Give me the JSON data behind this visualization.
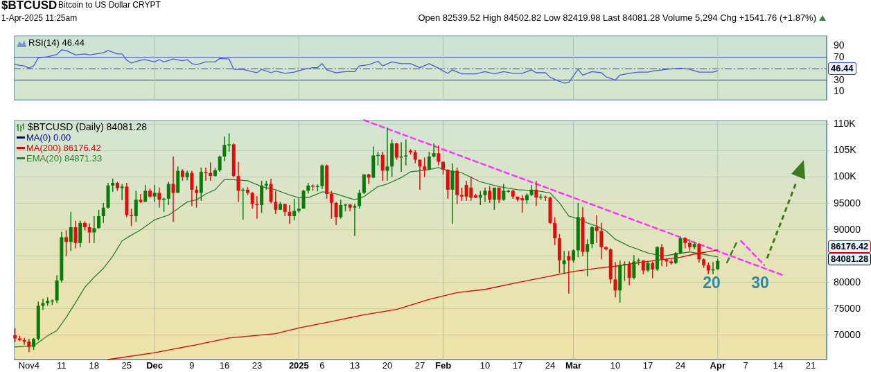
{
  "chart_data": [
    {
      "type": "line",
      "title": "$BTCUSD",
      "subtitle": "Bitcoin to US Dollar  CRYPT",
      "annotations": [
        "1-Apr-2025 11:25am",
        "Open 82539.52  High 84502.82  Low 82419.98  Last 84081.28  Volume 5,294  Chg +1541.76 (+1.87%)",
        "46.44"
      ],
      "series": [
        {
          "name": "RSI(14) 46.44",
          "color": "#4a5ad0",
          "x": [
            "2024-11-01",
            "2024-11-03",
            "2024-11-04",
            "2024-11-05",
            "2024-11-06",
            "2024-11-08",
            "2024-11-10",
            "2024-11-11",
            "2024-11-12",
            "2024-11-14",
            "2024-11-16",
            "2024-11-17",
            "2024-11-20",
            "2024-11-21",
            "2024-11-23",
            "2024-11-24",
            "2024-11-25",
            "2024-11-26",
            "2024-11-28",
            "2024-11-29",
            "2024-12-01",
            "2024-12-02",
            "2024-12-03",
            "2024-12-05",
            "2024-12-07",
            "2024-12-08",
            "2024-12-09",
            "2024-12-10",
            "2024-12-12",
            "2024-12-14",
            "2024-12-15",
            "2024-12-17",
            "2024-12-18",
            "2024-12-20",
            "2024-12-23",
            "2024-12-24",
            "2024-12-26",
            "2024-12-27",
            "2024-12-29",
            "2024-12-31",
            "2025-01-02",
            "2025-01-04",
            "2025-01-05",
            "2025-01-06",
            "2025-01-07",
            "2025-01-09",
            "2025-01-11",
            "2025-01-13",
            "2025-01-14",
            "2025-01-16",
            "2025-01-18",
            "2025-01-19",
            "2025-01-21",
            "2025-01-23",
            "2025-01-25",
            "2025-01-27",
            "2025-01-29",
            "2025-01-31",
            "2025-02-01",
            "2025-02-02",
            "2025-02-03",
            "2025-02-05",
            "2025-02-08",
            "2025-02-10",
            "2025-02-12",
            "2025-02-14",
            "2025-02-16",
            "2025-02-18",
            "2025-02-20",
            "2025-02-21",
            "2025-02-23",
            "2025-02-24",
            "2025-02-26",
            "2025-02-27",
            "2025-02-28",
            "2025-03-02",
            "2025-03-03",
            "2025-03-05",
            "2025-03-07",
            "2025-03-08",
            "2025-03-10",
            "2025-03-11",
            "2025-03-13",
            "2025-03-15",
            "2025-03-17",
            "2025-03-18",
            "2025-03-21",
            "2025-03-24",
            "2025-03-26",
            "2025-03-28",
            "2025-03-31",
            "2025-04-01"
          ],
          "values": [
            57,
            55,
            51,
            55,
            69,
            71,
            75,
            83,
            82,
            74,
            76,
            74,
            78,
            82,
            76,
            76,
            65,
            60,
            65,
            66,
            62,
            66,
            62,
            67,
            64,
            66,
            59,
            57,
            62,
            62,
            68,
            67,
            49,
            49,
            43,
            49,
            43,
            46,
            42,
            44,
            49,
            52,
            52,
            59,
            48,
            43,
            45,
            45,
            55,
            57,
            63,
            55,
            62,
            59,
            59,
            52,
            59,
            51,
            46,
            42,
            48,
            41,
            41,
            45,
            41,
            45,
            42,
            42,
            48,
            43,
            43,
            35,
            28,
            25,
            26,
            49,
            39,
            45,
            43,
            36,
            30,
            39,
            42,
            44,
            44,
            46,
            49,
            51,
            49,
            44,
            44,
            46.44
          ]
        }
      ],
      "xlim": [
        "2024-10-31T18:00",
        "2025-04-24T10:00"
      ],
      "ylim": [
        -5,
        108
      ],
      "yticks": [
        10,
        30,
        {
          "value": 50,
          "label": null
        },
        70,
        90
      ],
      "ref_lines": [
        {
          "axis": "y",
          "value": 70,
          "color": "#3040c8"
        },
        {
          "axis": "y",
          "value": 30,
          "color": "#3040c8"
        },
        {
          "axis": "y",
          "value": 50,
          "color": "#3040c8",
          "line_style": "dashed"
        },
        {
          "axis": "x",
          "value": "2024-12-01",
          "color": "#b4c4b8"
        },
        {
          "axis": "x",
          "value": "2025-01-01",
          "color": "#b4c4b8"
        },
        {
          "axis": "x",
          "value": "2025-02-01",
          "color": "#b4c4b8"
        },
        {
          "axis": "x",
          "value": "2025-03-01",
          "color": "#b4c4b8"
        },
        {
          "axis": "x",
          "value": "2025-04-01",
          "color": "#b4c4b8"
        }
      ],
      "legend": "top left",
      "tick_labels": "y"
    },
    {
      "type": "candlestick",
      "legend_title": "$BTCUSD (Daily) 84081.28",
      "x": [
        "2024-11-01",
        "2024-11-02",
        "2024-11-03",
        "2024-11-04",
        "2024-11-05",
        "2024-11-06",
        "2024-11-07",
        "2024-11-08",
        "2024-11-09",
        "2024-11-10",
        "2024-11-11",
        "2024-11-12",
        "2024-11-13",
        "2024-11-14",
        "2024-11-15",
        "2024-11-16",
        "2024-11-17",
        "2024-11-18",
        "2024-11-19",
        "2024-11-20",
        "2024-11-21",
        "2024-11-22",
        "2024-11-23",
        "2024-11-24",
        "2024-11-25",
        "2024-11-26",
        "2024-11-27",
        "2024-11-28",
        "2024-11-29",
        "2024-11-30",
        "2024-12-01",
        "2024-12-02",
        "2024-12-03",
        "2024-12-04",
        "2024-12-05",
        "2024-12-06",
        "2024-12-07",
        "2024-12-08",
        "2024-12-09",
        "2024-12-10",
        "2024-12-11",
        "2024-12-12",
        "2024-12-13",
        "2024-12-14",
        "2024-12-15",
        "2024-12-16",
        "2024-12-17",
        "2024-12-18",
        "2024-12-19",
        "2024-12-20",
        "2024-12-21",
        "2024-12-22",
        "2024-12-23",
        "2024-12-24",
        "2024-12-25",
        "2024-12-26",
        "2024-12-27",
        "2024-12-28",
        "2024-12-29",
        "2024-12-30",
        "2024-12-31",
        "2025-01-01",
        "2025-01-02",
        "2025-01-03",
        "2025-01-04",
        "2025-01-05",
        "2025-01-06",
        "2025-01-07",
        "2025-01-08",
        "2025-01-09",
        "2025-01-10",
        "2025-01-11",
        "2025-01-12",
        "2025-01-13",
        "2025-01-14",
        "2025-01-15",
        "2025-01-16",
        "2025-01-17",
        "2025-01-18",
        "2025-01-19",
        "2025-01-20",
        "2025-01-21",
        "2025-01-22",
        "2025-01-23",
        "2025-01-24",
        "2025-01-25",
        "2025-01-26",
        "2025-01-27",
        "2025-01-28",
        "2025-01-29",
        "2025-01-30",
        "2025-01-31",
        "2025-02-01",
        "2025-02-02",
        "2025-02-03",
        "2025-02-04",
        "2025-02-05",
        "2025-02-06",
        "2025-02-07",
        "2025-02-08",
        "2025-02-09",
        "2025-02-10",
        "2025-02-11",
        "2025-02-12",
        "2025-02-13",
        "2025-02-14",
        "2025-02-15",
        "2025-02-16",
        "2025-02-17",
        "2025-02-18",
        "2025-02-19",
        "2025-02-20",
        "2025-02-21",
        "2025-02-22",
        "2025-02-23",
        "2025-02-24",
        "2025-02-25",
        "2025-02-26",
        "2025-02-27",
        "2025-02-28",
        "2025-03-01",
        "2025-03-02",
        "2025-03-03",
        "2025-03-04",
        "2025-03-05",
        "2025-03-06",
        "2025-03-07",
        "2025-03-08",
        "2025-03-09",
        "2025-03-10",
        "2025-03-11",
        "2025-03-12",
        "2025-03-13",
        "2025-03-14",
        "2025-03-15",
        "2025-03-16",
        "2025-03-17",
        "2025-03-18",
        "2025-03-19",
        "2025-03-20",
        "2025-03-21",
        "2025-03-22",
        "2025-03-23",
        "2025-03-24",
        "2025-03-25",
        "2025-03-26",
        "2025-03-27",
        "2025-03-28",
        "2025-03-29",
        "2025-03-30",
        "2025-03-31",
        "2025-04-01"
      ],
      "ohlc": [
        [
          70000,
          71300,
          68700,
          69400
        ],
        [
          69400,
          69900,
          68900,
          69100
        ],
        [
          69100,
          69500,
          68200,
          68800
        ],
        [
          68800,
          69300,
          66800,
          67800
        ],
        [
          67800,
          69500,
          67200,
          69300
        ],
        [
          69300,
          76400,
          69000,
          75600
        ],
        [
          75600,
          76900,
          74800,
          76100
        ],
        [
          76100,
          77200,
          75600,
          76500
        ],
        [
          76500,
          76800,
          75700,
          76600
        ],
        [
          76600,
          81400,
          76100,
          80400
        ],
        [
          80400,
          89600,
          80000,
          88600
        ],
        [
          88600,
          89900,
          85000,
          87700
        ],
        [
          87700,
          93400,
          86000,
          90500
        ],
        [
          90500,
          91700,
          86500,
          87500
        ],
        [
          87500,
          91700,
          86700,
          91300
        ],
        [
          91300,
          91600,
          89900,
          90500
        ],
        [
          90500,
          91200,
          87500,
          89500
        ],
        [
          89500,
          92600,
          87500,
          90300
        ],
        [
          90300,
          93800,
          90300,
          92600
        ],
        [
          92600,
          95100,
          91300,
          94200
        ],
        [
          94200,
          98900,
          94000,
          98400
        ],
        [
          98400,
          99700,
          97200,
          98900
        ],
        [
          98900,
          99100,
          97400,
          97900
        ],
        [
          97900,
          98700,
          95600,
          98200
        ],
        [
          98200,
          98900,
          92400,
          92800
        ],
        [
          92800,
          94000,
          90700,
          92600
        ],
        [
          92600,
          97400,
          91500,
          95700
        ],
        [
          95700,
          96800,
          95100,
          95300
        ],
        [
          95300,
          98500,
          95300,
          97400
        ],
        [
          97400,
          97800,
          96100,
          96300
        ],
        [
          96300,
          98500,
          95300,
          97000
        ],
        [
          97000,
          98000,
          94200,
          95700
        ],
        [
          95700,
          96100,
          93400,
          95900
        ],
        [
          95900,
          99100,
          94700,
          98700
        ],
        [
          98700,
          103900,
          91500,
          97000
        ],
        [
          97000,
          102000,
          97000,
          101200
        ],
        [
          101200,
          101500,
          99300,
          100000
        ],
        [
          100000,
          101200,
          99400,
          100800
        ],
        [
          100800,
          101200,
          94500,
          97600
        ],
        [
          97600,
          98300,
          94200,
          97000
        ],
        [
          97000,
          101800,
          95500,
          101000
        ],
        [
          101000,
          101800,
          99300,
          100800
        ],
        [
          100800,
          102800,
          99300,
          100200
        ],
        [
          100200,
          101700,
          100100,
          101300
        ],
        [
          101300,
          104100,
          101000,
          103900
        ],
        [
          103900,
          107700,
          103000,
          106100
        ],
        [
          106100,
          108300,
          104800,
          106200
        ],
        [
          106200,
          106400,
          100000,
          100200
        ],
        [
          100200,
          102900,
          95300,
          97400
        ],
        [
          97400,
          98000,
          91900,
          97600
        ],
        [
          97600,
          98100,
          96600,
          97000
        ],
        [
          97000,
          97200,
          94000,
          94900
        ],
        [
          94900,
          96400,
          92100,
          94700
        ],
        [
          94700,
          99300,
          93200,
          98400
        ],
        [
          98400,
          99300,
          97600,
          98700
        ],
        [
          98700,
          99700,
          95000,
          95300
        ],
        [
          95300,
          97400,
          93000,
          93800
        ],
        [
          93800,
          95300,
          93800,
          94900
        ],
        [
          94900,
          94900,
          92600,
          93400
        ],
        [
          93400,
          94700,
          91100,
          92600
        ],
        [
          92600,
          95900,
          91800,
          93600
        ],
        [
          93600,
          96000,
          93200,
          94000
        ],
        [
          94000,
          97600,
          94000,
          97400
        ],
        [
          97400,
          98900,
          96900,
          98400
        ],
        [
          98400,
          98600,
          97400,
          98200
        ],
        [
          98200,
          98600,
          97300,
          98300
        ],
        [
          98300,
          102400,
          97700,
          102200
        ],
        [
          102200,
          102400,
          95900,
          96800
        ],
        [
          96800,
          97400,
          92100,
          95100
        ],
        [
          95100,
          95300,
          90900,
          92400
        ],
        [
          92400,
          95700,
          92100,
          94700
        ],
        [
          94700,
          94900,
          93500,
          94800
        ],
        [
          94800,
          94900,
          93500,
          94200
        ],
        [
          94200,
          94900,
          88800,
          94500
        ],
        [
          94500,
          97600,
          94000,
          97000
        ],
        [
          97000,
          100500,
          96800,
          100500
        ],
        [
          100500,
          100600,
          98700,
          99900
        ],
        [
          99900,
          105800,
          99800,
          104100
        ],
        [
          104100,
          104800,
          102200,
          104200
        ],
        [
          104200,
          104800,
          99300,
          101200
        ],
        [
          101200,
          109400,
          99300,
          102000
        ],
        [
          102000,
          107100,
          100000,
          106400
        ],
        [
          106400,
          106500,
          103300,
          103700
        ],
        [
          103700,
          106600,
          101000,
          103900
        ],
        [
          103900,
          107100,
          102200,
          104100
        ],
        [
          105000,
          105300,
          104300,
          104700
        ],
        [
          104700,
          105100,
          102600,
          103300
        ],
        [
          103300,
          103300,
          97600,
          102000
        ],
        [
          102000,
          103700,
          100000,
          101400
        ],
        [
          101400,
          104800,
          101400,
          103900
        ],
        [
          103900,
          106400,
          103700,
          104500
        ],
        [
          104500,
          106000,
          102200,
          102900
        ],
        [
          102900,
          102900,
          100500,
          101400
        ],
        [
          101400,
          101500,
          95900,
          97600
        ],
        [
          97600,
          102600,
          91100,
          101200
        ],
        [
          101200,
          101800,
          94900,
          96600
        ],
        [
          96600,
          98000,
          95500,
          96300
        ],
        [
          98500,
          99300,
          95500,
          96300
        ],
        [
          98000,
          100100,
          95500,
          96100
        ],
        [
          96500,
          96800,
          96000,
          96100
        ],
        [
          96100,
          97400,
          94700,
          96600
        ],
        [
          96600,
          98000,
          95300,
          97400
        ],
        [
          97400,
          98300,
          95100,
          95700
        ],
        [
          95700,
          98000,
          93800,
          98000
        ],
        [
          98000,
          98000,
          95100,
          95700
        ],
        [
          95700,
          98700,
          95500,
          97400
        ],
        [
          97200,
          97600,
          97000,
          97400
        ],
        [
          97400,
          97600,
          95900,
          96300
        ],
        [
          96300,
          96300,
          95400,
          95700
        ],
        [
          96000,
          96600,
          93200,
          95600
        ],
        [
          95600,
          96900,
          94900,
          96600
        ],
        [
          96600,
          98500,
          96400,
          97600
        ],
        [
          97600,
          99300,
          94500,
          96100
        ],
        [
          96100,
          96800,
          95700,
          96300
        ],
        [
          96300,
          96500,
          95500,
          96100
        ],
        [
          96100,
          96300,
          91100,
          91300
        ],
        [
          91300,
          92400,
          87100,
          88400
        ],
        [
          88400,
          89200,
          81800,
          84200
        ],
        [
          83500,
          86000,
          81600,
          84200
        ],
        [
          85000,
          86000,
          77900,
          84200
        ],
        [
          84200,
          86300,
          83800,
          86100
        ],
        [
          86100,
          95100,
          84800,
          92400
        ],
        [
          92400,
          94300,
          85000,
          85800
        ],
        [
          85800,
          88200,
          81200,
          87300
        ],
        [
          87300,
          90700,
          86500,
          90500
        ],
        [
          90500,
          92800,
          87500,
          89800
        ],
        [
          89800,
          91300,
          84400,
          86700
        ],
        [
          86700,
          86900,
          86100,
          86300
        ],
        [
          86300,
          86500,
          79800,
          80600
        ],
        [
          80600,
          83900,
          77200,
          78500
        ],
        [
          78500,
          84200,
          76200,
          83300
        ],
        [
          83300,
          84000,
          80300,
          83500
        ],
        [
          83500,
          84000,
          79500,
          80900
        ],
        [
          80900,
          85200,
          80600,
          84000
        ],
        [
          84000,
          84600,
          83300,
          84200
        ],
        [
          84200,
          84200,
          81600,
          82300
        ],
        [
          82300,
          84000,
          82000,
          83700
        ],
        [
          83700,
          84000,
          80800,
          82500
        ],
        [
          82500,
          86900,
          82200,
          86700
        ],
        [
          86700,
          87300,
          83100,
          84400
        ],
        [
          84400,
          84600,
          83000,
          84000
        ],
        [
          84000,
          84400,
          83400,
          83700
        ],
        [
          83700,
          85800,
          83500,
          85600
        ],
        [
          85600,
          88600,
          85400,
          88400
        ],
        [
          88400,
          88600,
          86500,
          87500
        ],
        [
          87500,
          88200,
          86000,
          86700
        ],
        [
          86700,
          87700,
          86300,
          87300
        ],
        [
          87300,
          87500,
          83800,
          84400
        ],
        [
          84400,
          84600,
          82800,
          83300
        ],
        [
          83300,
          83800,
          81600,
          82300
        ],
        [
          82300,
          83900,
          81600,
          82500
        ],
        [
          82539.52,
          84502.82,
          82419.98,
          84081.28
        ]
      ],
      "series": [
        {
          "type": "line",
          "name": "MA(0) 0.00",
          "color": "#000090",
          "values": [
            null,
            null,
            null,
            null,
            null,
            null,
            null,
            null,
            null,
            null,
            null,
            null,
            null,
            null,
            null,
            null,
            null,
            null,
            null,
            null,
            null,
            null,
            null,
            null,
            null,
            null,
            null,
            null,
            null,
            null,
            null,
            null,
            null,
            null,
            null,
            null,
            null,
            null,
            null,
            null,
            null,
            null,
            null,
            null,
            null,
            null,
            null,
            null,
            null,
            null,
            null,
            null,
            null,
            null,
            null,
            null,
            null,
            null,
            null,
            null,
            null,
            null,
            null,
            null,
            null,
            null,
            null,
            null,
            null,
            null,
            null,
            null,
            null,
            null,
            null,
            null,
            null,
            null,
            null,
            null,
            null,
            null,
            null,
            null,
            null,
            null,
            null,
            null,
            null,
            null,
            null,
            null,
            null,
            null,
            null,
            null,
            null,
            null,
            null,
            null,
            null,
            null,
            null,
            null,
            null,
            null,
            null,
            null,
            null,
            null,
            null,
            null,
            null,
            null,
            null,
            null,
            null,
            null,
            null,
            null,
            null,
            null,
            null,
            null,
            null,
            null,
            null,
            null,
            null,
            null,
            null,
            null,
            null,
            null,
            null,
            null,
            null,
            null,
            null,
            null,
            null,
            null,
            null,
            null,
            null,
            null,
            null,
            null,
            null,
            null,
            null,
            null
          ]
        },
        {
          "type": "line",
          "name": "MA(200) 86176.42",
          "color": "#e00000",
          "x": [
            "2024-11-21",
            "2024-12-01",
            "2024-12-10",
            "2024-12-17",
            "2024-12-27",
            "2025-01-01",
            "2025-01-08",
            "2025-01-15",
            "2025-01-22",
            "2025-01-29",
            "2025-02-04",
            "2025-02-10",
            "2025-02-17",
            "2025-02-24",
            "2025-03-01",
            "2025-03-06",
            "2025-03-10",
            "2025-03-17",
            "2025-03-24",
            "2025-03-27",
            "2025-04-01"
          ],
          "values": [
            65400,
            66700,
            68200,
            69500,
            70300,
            71400,
            72600,
            73900,
            74900,
            76800,
            78100,
            78700,
            80000,
            81200,
            82100,
            82700,
            83100,
            84000,
            84800,
            85400,
            86176.42
          ]
        },
        {
          "type": "line",
          "name": "EMA(20) 84871.33",
          "color": "#2e7d32",
          "x": [
            "2024-11-01",
            "2024-11-05",
            "2024-11-08",
            "2024-11-10",
            "2024-11-12",
            "2024-11-14",
            "2024-11-16",
            "2024-11-18",
            "2024-11-20",
            "2024-11-22",
            "2024-11-24",
            "2024-11-26",
            "2024-11-28",
            "2024-12-01",
            "2024-12-04",
            "2024-12-06",
            "2024-12-08",
            "2024-12-10",
            "2024-12-12",
            "2024-12-14",
            "2024-12-16",
            "2024-12-18",
            "2024-12-21",
            "2024-12-24",
            "2024-12-27",
            "2024-12-30",
            "2025-01-01",
            "2025-01-03",
            "2025-01-05",
            "2025-01-06",
            "2025-01-09",
            "2025-01-13",
            "2025-01-15",
            "2025-01-18",
            "2025-01-20",
            "2025-01-23",
            "2025-01-25",
            "2025-01-29",
            "2025-01-31",
            "2025-02-02",
            "2025-02-05",
            "2025-02-09",
            "2025-02-13",
            "2025-02-17",
            "2025-02-21",
            "2025-02-24",
            "2025-02-26",
            "2025-02-28",
            "2025-03-02",
            "2025-03-04",
            "2025-03-06",
            "2025-03-08",
            "2025-03-10",
            "2025-03-13",
            "2025-03-17",
            "2025-03-20",
            "2025-03-23",
            "2025-03-26",
            "2025-03-28",
            "2025-04-01"
          ],
          "values": [
            67800,
            68000,
            69900,
            70900,
            73400,
            76200,
            79100,
            81000,
            82700,
            85000,
            87900,
            89000,
            90000,
            91900,
            92800,
            94000,
            95300,
            95700,
            96800,
            97600,
            99500,
            99500,
            99300,
            98200,
            97600,
            96600,
            96100,
            96100,
            96800,
            97200,
            96800,
            95700,
            96300,
            98200,
            98700,
            99900,
            101000,
            101400,
            101800,
            101200,
            100800,
            99100,
            98200,
            97600,
            97400,
            97000,
            95100,
            92600,
            92100,
            91300,
            90700,
            89800,
            88200,
            86900,
            85600,
            85000,
            85400,
            85800,
            85500,
            84871.33
          ]
        },
        {
          "type": "line",
          "color": "#ff33ff",
          "line_style": "dashed",
          "x": [
            "2025-01-15",
            "2025-04-15"
          ],
          "values": [
            110800,
            81400
          ]
        },
        {
          "type": "line",
          "color": "#ff33ff",
          "line_style": "dashed",
          "x": [
            "2025-04-06",
            "2025-04-11"
          ],
          "values": [
            87900,
            83300
          ]
        },
        {
          "type": "line",
          "color": "#3d7a1e",
          "line_style": "dashed",
          "x": [
            "2025-04-03",
            "2025-04-05"
          ],
          "values": [
            83800,
            87500
          ]
        }
      ],
      "annotations": [
        "20",
        "30",
        "86176.42",
        "84081.28"
      ],
      "xlim": [
        "2024-10-31T18:00",
        "2025-04-24T10:00"
      ],
      "xticks": [
        {
          "value": "2024-11-04",
          "label": "Nov4"
        },
        {
          "value": "2024-11-11",
          "label": "11"
        },
        {
          "value": "2024-11-18",
          "label": "18"
        },
        {
          "value": "2024-11-25",
          "label": "25"
        },
        {
          "value": "2024-12-01",
          "label": "Dec"
        },
        {
          "value": "2024-12-09",
          "label": "9"
        },
        {
          "value": "2024-12-16",
          "label": "16"
        },
        {
          "value": "2024-12-23",
          "label": "23"
        },
        {
          "value": "2025-01-01",
          "label": "2025"
        },
        {
          "value": "2025-01-06",
          "label": "6"
        },
        {
          "value": "2025-01-13",
          "label": "13"
        },
        {
          "value": "2025-01-20",
          "label": "20"
        },
        {
          "value": "2025-01-27",
          "label": "27"
        },
        {
          "value": "2025-02-01",
          "label": "Feb"
        },
        {
          "value": "2025-02-10",
          "label": "10"
        },
        {
          "value": "2025-02-17",
          "label": "17"
        },
        {
          "value": "2025-02-24",
          "label": "24"
        },
        {
          "value": "2025-03-01",
          "label": "Mar"
        },
        {
          "value": "2025-03-10",
          "label": "10"
        },
        {
          "value": "2025-03-17",
          "label": "17"
        },
        {
          "value": "2025-03-24",
          "label": "24"
        },
        {
          "value": "2025-04-01",
          "label": "Apr"
        },
        {
          "value": "2025-04-07",
          "label": "7"
        },
        {
          "value": "2025-04-14",
          "label": "14"
        },
        {
          "value": "2025-04-21",
          "label": "21"
        }
      ],
      "ylim": [
        65400,
        110800
      ],
      "yticks": [
        70000,
        75000,
        80000,
        {
          "value": 85000,
          "label": null
        },
        90000,
        95000,
        {
          "value": 100000,
          "label": "100K"
        },
        {
          "value": 105000,
          "label": "105K"
        },
        {
          "value": 110000,
          "label": "110K"
        }
      ],
      "ref_lines": [
        {
          "axis": "x",
          "value": "2024-12-01",
          "color": "#b4c4b8"
        },
        {
          "axis": "x",
          "value": "2025-01-01",
          "color": "#b4c4b8"
        },
        {
          "axis": "x",
          "value": "2025-02-01",
          "color": "#b4c4b8"
        },
        {
          "axis": "x",
          "value": "2025-03-01",
          "color": "#b4c4b8"
        },
        {
          "axis": "x",
          "value": "2025-04-01",
          "color": "#b4c4b8"
        }
      ],
      "grid": "y",
      "legend": "top left"
    }
  ]
}
